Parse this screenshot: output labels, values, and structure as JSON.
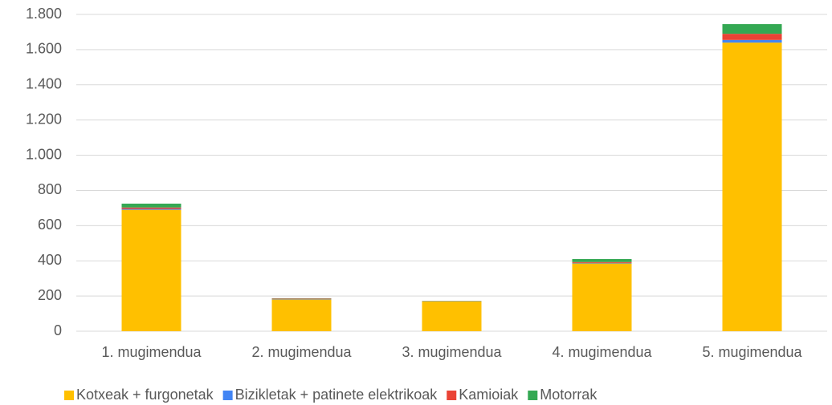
{
  "chart_data": {
    "type": "stacked_bar",
    "categories": [
      "1. mugimendua",
      "2. mugimendua",
      "3. mugimendua",
      "4. mugimendua",
      "5. mugimendua"
    ],
    "series": [
      {
        "name": "Kotxeak + furgonetak",
        "color": "#ffc000",
        "values": [
          690,
          180,
          170,
          385,
          1640
        ]
      },
      {
        "name": "Bizikletak + patinete elektrikoak",
        "color": "#4285f4",
        "values": [
          5,
          2,
          1,
          3,
          15
        ]
      },
      {
        "name": "Kamioiak",
        "color": "#ea4335",
        "values": [
          8,
          3,
          1,
          5,
          35
        ]
      },
      {
        "name": "Motorrak",
        "color": "#34a853",
        "values": [
          22,
          2,
          1,
          17,
          55
        ]
      }
    ],
    "ylim": [
      0,
      1800
    ],
    "yticks": [
      0,
      200,
      400,
      600,
      800,
      {
        "value": 1000,
        "label": "1.000"
      },
      {
        "value": 1200,
        "label": "1.200"
      },
      {
        "value": 1400,
        "label": "1.400"
      },
      {
        "value": 1600,
        "label": "1.600"
      },
      {
        "value": 1800,
        "label": "1.800"
      }
    ],
    "grid": true,
    "legend": "bottom"
  }
}
